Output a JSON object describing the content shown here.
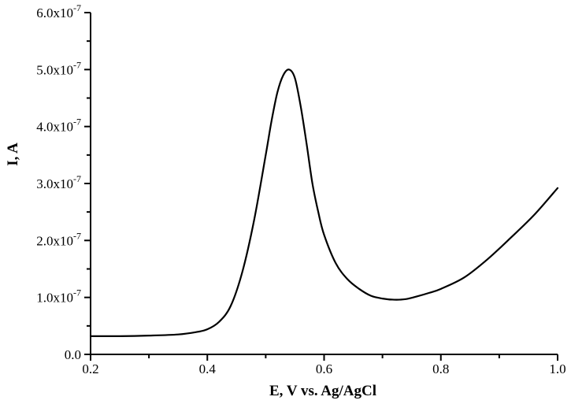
{
  "chart_data": {
    "type": "line",
    "title": "",
    "xlabel": "E, V vs. Ag/AgCl",
    "ylabel": "I, A",
    "xlim": [
      0.2,
      1.0
    ],
    "ylim": [
      0,
      6e-07
    ],
    "grid": false,
    "legend": "none",
    "x_ticks": [
      {
        "value": 0.2,
        "label": "0.2"
      },
      {
        "value": 0.4,
        "label": "0.4"
      },
      {
        "value": 0.6,
        "label": "0.6"
      },
      {
        "value": 0.8,
        "label": "0.8"
      },
      {
        "value": 1.0,
        "label": "1.0"
      }
    ],
    "y_ticks": [
      {
        "value": 0,
        "mantissa": "0.0",
        "exp": ""
      },
      {
        "value": 1e-07,
        "mantissa": "1.0x10",
        "exp": "-7"
      },
      {
        "value": 2e-07,
        "mantissa": "2.0x10",
        "exp": "-7"
      },
      {
        "value": 3e-07,
        "mantissa": "3.0x10",
        "exp": "-7"
      },
      {
        "value": 4e-07,
        "mantissa": "4.0x10",
        "exp": "-7"
      },
      {
        "value": 5e-07,
        "mantissa": "5.0x10",
        "exp": "-7"
      },
      {
        "value": 6e-07,
        "mantissa": "6.0x10",
        "exp": "-7"
      }
    ],
    "series": [
      {
        "color": "#000000",
        "x": [
          0.2,
          0.25,
          0.3,
          0.35,
          0.38,
          0.4,
          0.42,
          0.44,
          0.46,
          0.48,
          0.5,
          0.51,
          0.52,
          0.53,
          0.54,
          0.55,
          0.56,
          0.57,
          0.58,
          0.59,
          0.6,
          0.62,
          0.64,
          0.66,
          0.68,
          0.7,
          0.72,
          0.74,
          0.76,
          0.78,
          0.8,
          0.84,
          0.88,
          0.92,
          0.96,
          1.0
        ],
        "y": [
          3.2e-08,
          3.2e-08,
          3.3e-08,
          3.5e-08,
          3.9e-08,
          4.4e-08,
          5.7e-08,
          8.5e-08,
          1.45e-07,
          2.35e-07,
          3.5e-07,
          4.1e-07,
          4.6e-07,
          4.9e-07,
          5e-07,
          4.85e-07,
          4.35e-07,
          3.7e-07,
          3e-07,
          2.5e-07,
          2.1e-07,
          1.6e-07,
          1.32e-07,
          1.15e-07,
          1.03e-07,
          9.8e-08,
          9.6e-08,
          9.7e-08,
          1.02e-07,
          1.08e-07,
          1.15e-07,
          1.35e-07,
          1.67e-07,
          2.05e-07,
          2.45e-07,
          2.92e-07
        ]
      }
    ]
  }
}
